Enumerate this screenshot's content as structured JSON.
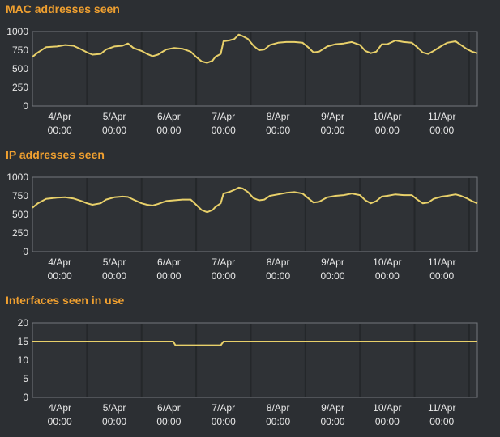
{
  "colors": {
    "background": "#2c2f33",
    "title": "#f0a030",
    "series": "#e8d06a",
    "axis_text": "#e8e8e8",
    "frame": "#73777c",
    "grid": "#24272a"
  },
  "chart_data": [
    {
      "type": "line",
      "title": "MAC addresses seen",
      "xlabel": "",
      "ylabel": "",
      "ylim": [
        0,
        1000
      ],
      "yticks": [
        "0",
        "250",
        "500",
        "750",
        "1000"
      ],
      "xticks": [
        {
          "day": "4/Apr",
          "time": "00:00",
          "t": 0.5
        },
        {
          "day": "5/Apr",
          "time": "00:00",
          "t": 1.5
        },
        {
          "day": "6/Apr",
          "time": "00:00",
          "t": 2.5
        },
        {
          "day": "7/Apr",
          "time": "00:00",
          "t": 3.5
        },
        {
          "day": "8/Apr",
          "time": "00:00",
          "t": 4.5
        },
        {
          "day": "9/Apr",
          "time": "00:00",
          "t": 5.5
        },
        {
          "day": "10/Apr",
          "time": "00:00",
          "t": 6.5
        },
        {
          "day": "11/Apr",
          "time": "00:00",
          "t": 7.5
        }
      ],
      "xlim": [
        0,
        8.15
      ],
      "grid": true,
      "series": [
        {
          "values": [
            [
              0.0,
              660
            ],
            [
              0.1,
              720
            ],
            [
              0.25,
              790
            ],
            [
              0.45,
              800
            ],
            [
              0.6,
              820
            ],
            [
              0.75,
              810
            ],
            [
              0.9,
              760
            ],
            [
              1.0,
              720
            ],
            [
              1.1,
              690
            ],
            [
              1.25,
              700
            ],
            [
              1.35,
              760
            ],
            [
              1.5,
              800
            ],
            [
              1.65,
              810
            ],
            [
              1.75,
              840
            ],
            [
              1.85,
              780
            ],
            [
              2.0,
              740
            ],
            [
              2.1,
              700
            ],
            [
              2.2,
              670
            ],
            [
              2.3,
              690
            ],
            [
              2.45,
              760
            ],
            [
              2.6,
              780
            ],
            [
              2.75,
              770
            ],
            [
              2.9,
              730
            ],
            [
              3.0,
              660
            ],
            [
              3.1,
              600
            ],
            [
              3.2,
              580
            ],
            [
              3.3,
              610
            ],
            [
              3.35,
              660
            ],
            [
              3.45,
              700
            ],
            [
              3.5,
              870
            ],
            [
              3.6,
              880
            ],
            [
              3.7,
              900
            ],
            [
              3.78,
              960
            ],
            [
              3.85,
              940
            ],
            [
              3.95,
              900
            ],
            [
              4.05,
              810
            ],
            [
              4.15,
              750
            ],
            [
              4.25,
              760
            ],
            [
              4.35,
              820
            ],
            [
              4.5,
              850
            ],
            [
              4.65,
              860
            ],
            [
              4.8,
              860
            ],
            [
              4.95,
              850
            ],
            [
              5.05,
              790
            ],
            [
              5.15,
              720
            ],
            [
              5.25,
              730
            ],
            [
              5.4,
              800
            ],
            [
              5.55,
              830
            ],
            [
              5.7,
              840
            ],
            [
              5.85,
              860
            ],
            [
              6.0,
              820
            ],
            [
              6.1,
              740
            ],
            [
              6.2,
              710
            ],
            [
              6.3,
              730
            ],
            [
              6.4,
              830
            ],
            [
              6.5,
              830
            ],
            [
              6.65,
              880
            ],
            [
              6.8,
              860
            ],
            [
              6.95,
              850
            ],
            [
              7.05,
              790
            ],
            [
              7.15,
              720
            ],
            [
              7.25,
              700
            ],
            [
              7.35,
              740
            ],
            [
              7.5,
              810
            ],
            [
              7.6,
              850
            ],
            [
              7.75,
              870
            ],
            [
              7.85,
              820
            ],
            [
              7.95,
              770
            ],
            [
              8.05,
              730
            ],
            [
              8.15,
              710
            ]
          ]
        }
      ]
    },
    {
      "type": "line",
      "title": "IP addresses seen",
      "xlabel": "",
      "ylabel": "",
      "ylim": [
        0,
        1000
      ],
      "yticks": [
        "0",
        "250",
        "500",
        "750",
        "1000"
      ],
      "xticks": [
        {
          "day": "4/Apr",
          "time": "00:00",
          "t": 0.5
        },
        {
          "day": "5/Apr",
          "time": "00:00",
          "t": 1.5
        },
        {
          "day": "6/Apr",
          "time": "00:00",
          "t": 2.5
        },
        {
          "day": "7/Apr",
          "time": "00:00",
          "t": 3.5
        },
        {
          "day": "8/Apr",
          "time": "00:00",
          "t": 4.5
        },
        {
          "day": "9/Apr",
          "time": "00:00",
          "t": 5.5
        },
        {
          "day": "10/Apr",
          "time": "00:00",
          "t": 6.5
        },
        {
          "day": "11/Apr",
          "time": "00:00",
          "t": 7.5
        }
      ],
      "xlim": [
        0,
        8.15
      ],
      "grid": true,
      "series": [
        {
          "values": [
            [
              0.0,
              590
            ],
            [
              0.1,
              650
            ],
            [
              0.25,
              710
            ],
            [
              0.45,
              725
            ],
            [
              0.6,
              730
            ],
            [
              0.75,
              715
            ],
            [
              0.9,
              680
            ],
            [
              1.0,
              650
            ],
            [
              1.1,
              630
            ],
            [
              1.25,
              650
            ],
            [
              1.35,
              700
            ],
            [
              1.5,
              730
            ],
            [
              1.65,
              740
            ],
            [
              1.75,
              735
            ],
            [
              1.85,
              700
            ],
            [
              2.0,
              650
            ],
            [
              2.1,
              630
            ],
            [
              2.2,
              620
            ],
            [
              2.3,
              640
            ],
            [
              2.45,
              680
            ],
            [
              2.6,
              690
            ],
            [
              2.75,
              700
            ],
            [
              2.9,
              700
            ],
            [
              3.0,
              630
            ],
            [
              3.1,
              560
            ],
            [
              3.2,
              530
            ],
            [
              3.3,
              560
            ],
            [
              3.35,
              600
            ],
            [
              3.45,
              650
            ],
            [
              3.5,
              780
            ],
            [
              3.6,
              800
            ],
            [
              3.7,
              830
            ],
            [
              3.78,
              860
            ],
            [
              3.85,
              850
            ],
            [
              3.95,
              800
            ],
            [
              4.05,
              720
            ],
            [
              4.15,
              690
            ],
            [
              4.25,
              700
            ],
            [
              4.35,
              750
            ],
            [
              4.5,
              770
            ],
            [
              4.65,
              790
            ],
            [
              4.8,
              800
            ],
            [
              4.95,
              780
            ],
            [
              5.05,
              720
            ],
            [
              5.15,
              660
            ],
            [
              5.25,
              670
            ],
            [
              5.4,
              730
            ],
            [
              5.55,
              750
            ],
            [
              5.7,
              760
            ],
            [
              5.85,
              780
            ],
            [
              6.0,
              760
            ],
            [
              6.1,
              690
            ],
            [
              6.2,
              650
            ],
            [
              6.3,
              680
            ],
            [
              6.4,
              740
            ],
            [
              6.5,
              750
            ],
            [
              6.65,
              770
            ],
            [
              6.8,
              760
            ],
            [
              6.95,
              760
            ],
            [
              7.05,
              700
            ],
            [
              7.15,
              650
            ],
            [
              7.25,
              660
            ],
            [
              7.35,
              710
            ],
            [
              7.5,
              740
            ],
            [
              7.6,
              750
            ],
            [
              7.75,
              770
            ],
            [
              7.85,
              750
            ],
            [
              7.95,
              720
            ],
            [
              8.05,
              680
            ],
            [
              8.15,
              650
            ]
          ]
        }
      ]
    },
    {
      "type": "line",
      "title": "Interfaces seen in use",
      "xlabel": "",
      "ylabel": "",
      "ylim": [
        0,
        20
      ],
      "yticks": [
        "0",
        "5",
        "10",
        "15",
        "20"
      ],
      "xticks": [
        {
          "day": "4/Apr",
          "time": "00:00",
          "t": 0.5
        },
        {
          "day": "5/Apr",
          "time": "00:00",
          "t": 1.5
        },
        {
          "day": "6/Apr",
          "time": "00:00",
          "t": 2.5
        },
        {
          "day": "7/Apr",
          "time": "00:00",
          "t": 3.5
        },
        {
          "day": "8/Apr",
          "time": "00:00",
          "t": 4.5
        },
        {
          "day": "9/Apr",
          "time": "00:00",
          "t": 5.5
        },
        {
          "day": "10/Apr",
          "time": "00:00",
          "t": 6.5
        },
        {
          "day": "11/Apr",
          "time": "00:00",
          "t": 7.5
        }
      ],
      "xlim": [
        0,
        8.15
      ],
      "grid": true,
      "series": [
        {
          "values": [
            [
              0.0,
              15
            ],
            [
              2.58,
              15
            ],
            [
              2.62,
              14
            ],
            [
              3.45,
              14
            ],
            [
              3.5,
              15
            ],
            [
              8.15,
              15
            ]
          ]
        }
      ]
    }
  ]
}
